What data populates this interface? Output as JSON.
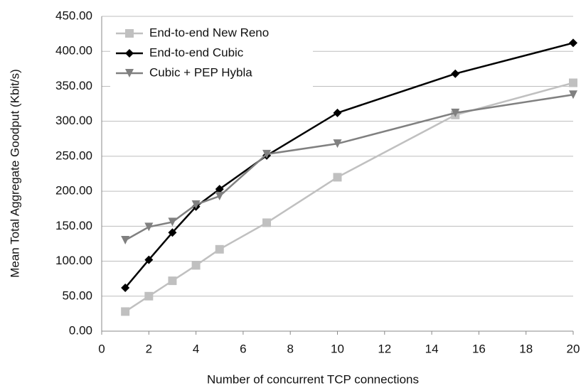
{
  "chart_data": {
    "type": "line",
    "xlabel": "Number of concurrent TCP connections",
    "ylabel": "Mean Total Aggregate Goodput (Kbit/s)",
    "xlim": [
      0,
      20
    ],
    "xticks": [
      0,
      2,
      4,
      6,
      8,
      10,
      12,
      14,
      16,
      18,
      20
    ],
    "ylim": [
      0,
      450
    ],
    "yticks": [
      {
        "value": 0,
        "label": "0.00"
      },
      {
        "value": 50,
        "label": "50.00"
      },
      {
        "value": 100,
        "label": "100.00"
      },
      {
        "value": 150,
        "label": "150.00"
      },
      {
        "value": 200,
        "label": "200.00"
      },
      {
        "value": 250,
        "label": "250.00"
      },
      {
        "value": 300,
        "label": "300.00"
      },
      {
        "value": 350,
        "label": "350.00"
      },
      {
        "value": 400,
        "label": "400.00"
      },
      {
        "value": 450,
        "label": "450.00"
      }
    ],
    "grid": true,
    "legend": "upper left",
    "x": [
      1,
      2,
      3,
      4,
      5,
      7,
      10,
      15,
      20
    ],
    "series": [
      {
        "name": "End-to-end New Reno",
        "color": "#c0c0c0",
        "marker": "square",
        "values": [
          28,
          50,
          72,
          94,
          117,
          155,
          220,
          309,
          355
        ]
      },
      {
        "name": "End-to-end Cubic",
        "color": "#000000",
        "marker": "diamond",
        "values": [
          62,
          102,
          141,
          178,
          203,
          251,
          312,
          368,
          412
        ]
      },
      {
        "name": "Cubic + PEP Hybla",
        "color": "#808080",
        "marker": "triangle-down",
        "values": [
          130,
          149,
          156,
          181,
          193,
          253,
          268,
          312,
          338
        ]
      }
    ]
  }
}
